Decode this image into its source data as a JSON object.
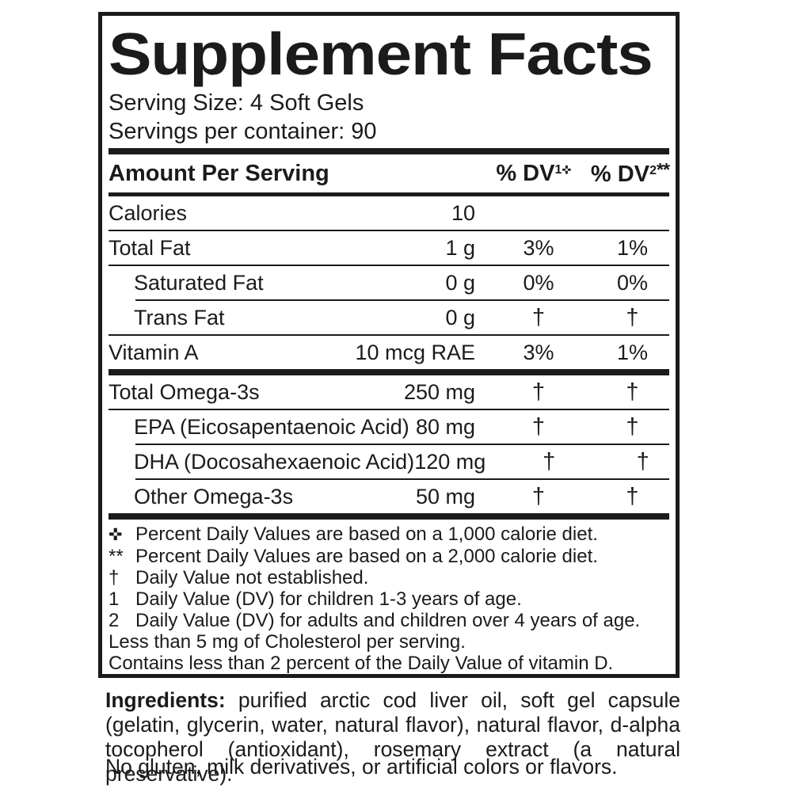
{
  "panel": {
    "title": "Supplement Facts",
    "serving_size": "Serving Size: 4 Soft Gels",
    "servings_per_container": "Servings per container: 90",
    "columns": {
      "amount_header": "Amount Per Serving",
      "dv1": {
        "text": "% DV",
        "sup": "1",
        "symbol": "✜"
      },
      "dv2": {
        "text": "% DV",
        "sup": "2",
        "symbol": "**"
      }
    },
    "rows": [
      {
        "label": "Calories",
        "amount": "10",
        "dv1": "",
        "dv2": ""
      },
      {
        "label": "Total Fat",
        "amount": "1 g",
        "dv1": "3%",
        "dv2": "1%"
      },
      {
        "label": "Saturated Fat",
        "amount": "0 g",
        "dv1": "0%",
        "dv2": "0%"
      },
      {
        "label": "Trans Fat",
        "amount": "0 g",
        "dv1": "†",
        "dv2": "†"
      },
      {
        "label": "Vitamin A",
        "amount": "10 mcg RAE",
        "dv1": "3%",
        "dv2": "1%"
      },
      {
        "label": "Total Omega-3s",
        "amount": "250 mg",
        "dv1": "†",
        "dv2": "†"
      },
      {
        "label": "EPA (Eicosapentaenoic Acid)",
        "amount": "80 mg",
        "dv1": "†",
        "dv2": "†"
      },
      {
        "label": "DHA (Docosahexaenoic Acid)",
        "amount": "120 mg",
        "dv1": "†",
        "dv2": "†"
      },
      {
        "label": "Other Omega-3s",
        "amount": "50 mg",
        "dv1": "†",
        "dv2": "†"
      }
    ],
    "footnotes": [
      {
        "marker": "✜",
        "text": "Percent Daily Values are based on a 1,000 calorie diet."
      },
      {
        "marker": "**",
        "text": "Percent Daily Values are based on a 2,000 calorie diet."
      },
      {
        "marker": "†",
        "text": "Daily Value not established."
      },
      {
        "marker": "1",
        "text": "Daily Value (DV) for children 1-3 years of age."
      },
      {
        "marker": "2",
        "text": "Daily Value (DV) for adults and children over 4 years of age."
      },
      {
        "marker": "",
        "text": "Less than 5 mg of Cholesterol per serving."
      },
      {
        "marker": "",
        "text": "Contains less than 2 percent of the Daily Value of vitamin D."
      }
    ]
  },
  "ingredients": {
    "label": "Ingredients:",
    "text": "purified arctic cod liver oil, soft gel capsule (gelatin, glycerin, water, natural flavor), natural flavor, d-alpha tocopherol (antioxidant), rosemary extract (a natural preservative).",
    "no_gluten": "No gluten, milk derivatives, or artificial colors or flavors."
  }
}
